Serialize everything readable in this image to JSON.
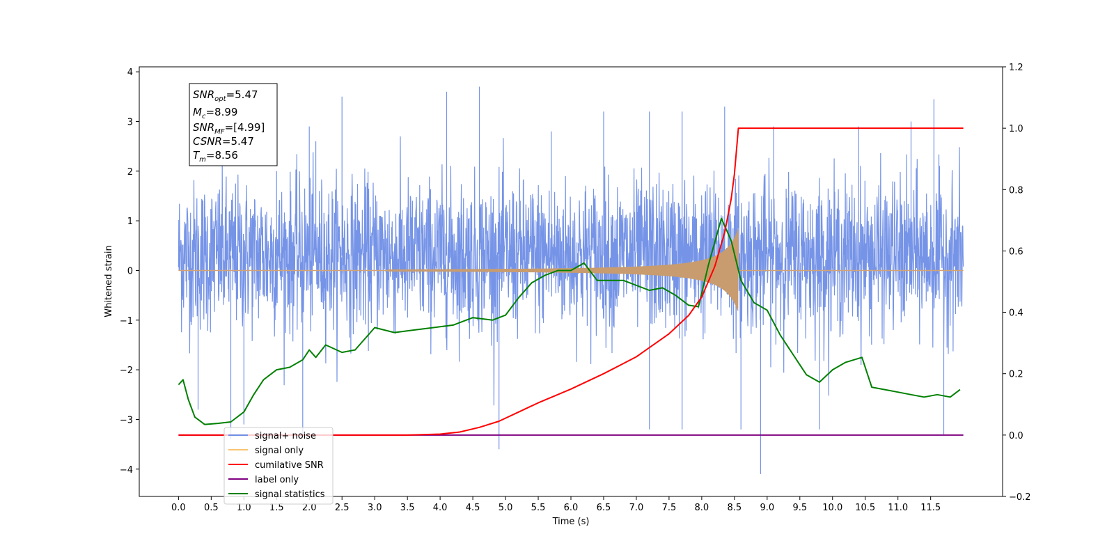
{
  "chart_data": {
    "type": "line",
    "xlabel": "Time (s)",
    "ylabel": "Whitened strain",
    "x_range": [
      -0.6,
      12.6
    ],
    "x_ticks": [
      0.0,
      0.5,
      1.0,
      1.5,
      2.0,
      2.5,
      3.0,
      3.5,
      4.0,
      4.5,
      5.0,
      5.5,
      6.0,
      6.5,
      7.0,
      7.5,
      8.0,
      8.5,
      9.0,
      9.5,
      10.0,
      10.5,
      11.0,
      11.5
    ],
    "x_tick_labels": [
      "0.0",
      "0.5",
      "1.0",
      "1.5",
      "2.0",
      "2.5",
      "3.0",
      "3.5",
      "4.0",
      "4.5",
      "5.0",
      "5.5",
      "6.0",
      "6.5",
      "7.0",
      "7.5",
      "8.0",
      "8.5",
      "9.0",
      "9.5",
      "10.0",
      "10.5",
      "11.0",
      "11.5"
    ],
    "y_left_range": [
      -4.55,
      4.1
    ],
    "y_left_ticks": [
      -4,
      -3,
      -2,
      -1,
      0,
      1,
      2,
      3,
      4
    ],
    "y_left_tick_labels": [
      "−4",
      "−3",
      "−2",
      "−1",
      "0",
      "1",
      "2",
      "3",
      "4"
    ],
    "y_right_range": [
      -0.2,
      1.2
    ],
    "y_right_ticks": [
      -0.2,
      0.0,
      0.2,
      0.4,
      0.6,
      0.8,
      1.0,
      1.2
    ],
    "y_right_tick_labels": [
      "−0.2",
      "0.0",
      "0.2",
      "0.4",
      "0.6",
      "0.8",
      "1.0",
      "1.2"
    ],
    "grid": false,
    "legend_position": "lower-left",
    "stats_box": [
      {
        "base": "SNR",
        "sub": "opt",
        "value": "=5.47"
      },
      {
        "base": "M",
        "sub": "c",
        "value": "=8.99"
      },
      {
        "base": "SNR",
        "sub": "MF",
        "value": "=[4.99]"
      },
      {
        "base": "CSNR",
        "sub": "",
        "value": "=5.47"
      },
      {
        "base": "T",
        "sub": "m",
        "value": "=8.56"
      }
    ],
    "series": [
      {
        "name": "signal+ noise",
        "axis": "left",
        "color": "#6f8ee6",
        "x_range": [
          0.0,
          12.0
        ],
        "baseline": 0.3,
        "std": 0.75,
        "spikes": [
          [
            0.8,
            -3.4
          ],
          [
            0.3,
            -2.8
          ],
          [
            1.0,
            -3.1
          ],
          [
            1.5,
            2.0
          ],
          [
            1.9,
            -3.3
          ],
          [
            2.0,
            2.9
          ],
          [
            2.5,
            3.5
          ],
          [
            2.1,
            2.6
          ],
          [
            4.1,
            3.6
          ],
          [
            4.6,
            3.7
          ],
          [
            4.9,
            -3.6
          ],
          [
            5.7,
            2.8
          ],
          [
            6.5,
            3.2
          ],
          [
            7.2,
            3.2
          ],
          [
            7.7,
            3.2
          ],
          [
            7.2,
            -3.2
          ],
          [
            7.7,
            -3.2
          ],
          [
            8.35,
            3.3
          ],
          [
            8.6,
            -3.2
          ],
          [
            8.9,
            -4.1
          ],
          [
            9.1,
            2.9
          ],
          [
            9.8,
            -3.2
          ],
          [
            10.4,
            2.9
          ],
          [
            11.2,
            3.0
          ],
          [
            11.55,
            3.45
          ],
          [
            11.7,
            -3.3
          ]
        ]
      },
      {
        "name": "signal only",
        "axis": "left",
        "color": "#c89c6e",
        "x_range": [
          0.0,
          12.0
        ],
        "merger_time": 8.56,
        "peak_amplitude": 0.85
      },
      {
        "name": "cumilative SNR",
        "axis": "right",
        "color": "#ff0000",
        "x": [
          0.0,
          3.5,
          4.0,
          4.3,
          4.6,
          4.9,
          5.2,
          5.5,
          6.0,
          6.5,
          7.0,
          7.5,
          7.8,
          8.0,
          8.2,
          8.35,
          8.45,
          8.5,
          8.56,
          12.0
        ],
        "y": [
          0.0,
          0.0,
          0.003,
          0.01,
          0.025,
          0.045,
          0.075,
          0.105,
          0.15,
          0.2,
          0.255,
          0.33,
          0.39,
          0.45,
          0.55,
          0.66,
          0.77,
          0.85,
          1.0,
          1.0
        ]
      },
      {
        "name": "label only",
        "axis": "right",
        "color": "#800080",
        "x": [
          0.0,
          12.0
        ],
        "y": [
          0.0,
          0.0
        ]
      },
      {
        "name": "signal statistics",
        "axis": "left",
        "color": "#008000",
        "x": [
          0.0,
          0.07,
          0.15,
          0.25,
          0.4,
          0.6,
          0.8,
          1.0,
          1.15,
          1.3,
          1.5,
          1.7,
          1.9,
          2.0,
          2.1,
          2.25,
          2.5,
          2.7,
          3.0,
          3.3,
          3.6,
          3.9,
          4.2,
          4.5,
          4.8,
          5.0,
          5.2,
          5.4,
          5.6,
          5.8,
          6.0,
          6.2,
          6.4,
          6.6,
          6.8,
          7.0,
          7.2,
          7.4,
          7.6,
          7.8,
          7.95,
          8.1,
          8.3,
          8.45,
          8.6,
          8.8,
          9.0,
          9.2,
          9.4,
          9.6,
          9.8,
          10.0,
          10.2,
          10.45,
          10.6,
          10.8,
          11.0,
          11.2,
          11.4,
          11.6,
          11.8,
          11.95
        ],
        "y": [
          -2.3,
          -2.2,
          -2.6,
          -2.95,
          -3.1,
          -3.08,
          -3.05,
          -2.85,
          -2.5,
          -2.2,
          -2.0,
          -1.95,
          -1.8,
          -1.6,
          -1.75,
          -1.5,
          -1.65,
          -1.6,
          -1.15,
          -1.25,
          -1.2,
          -1.15,
          -1.1,
          -0.95,
          -1.0,
          -0.9,
          -0.55,
          -0.25,
          -0.1,
          0.0,
          0.0,
          0.15,
          -0.2,
          -0.2,
          -0.2,
          -0.3,
          -0.4,
          -0.35,
          -0.5,
          -0.7,
          -0.73,
          0.1,
          1.05,
          0.6,
          -0.2,
          -0.65,
          -0.8,
          -1.3,
          -1.7,
          -2.1,
          -2.25,
          -2.0,
          -1.85,
          -1.75,
          -2.35,
          -2.4,
          -2.45,
          -2.5,
          -2.55,
          -2.5,
          -2.55,
          -2.4
        ]
      }
    ]
  }
}
